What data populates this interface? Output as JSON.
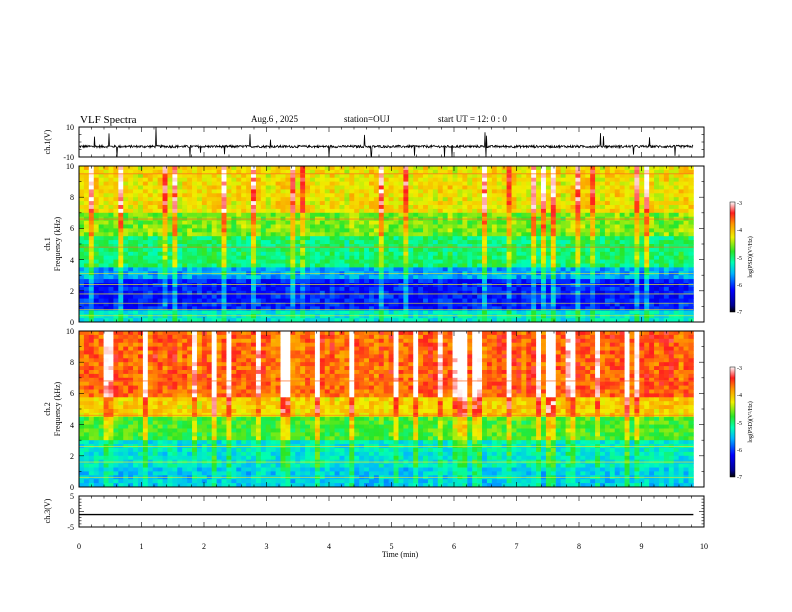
{
  "header": {
    "title": "VLF Spectra",
    "date": "Aug.6 , 2025",
    "station": "station=OUJ",
    "start": "start UT = 12: 0 : 0"
  },
  "chart_data": [
    {
      "type": "line",
      "panel": "ch1-waveform",
      "ylabel": "ch.1(V)",
      "ylim": [
        -10,
        10
      ],
      "ytick_labels": [
        "10",
        "-10"
      ],
      "baseline": -3
    },
    {
      "type": "heatmap",
      "panel": "ch1-spectrogram",
      "ylabel_line1": "ch.1",
      "ylabel_line2": "Frequency (kHz)",
      "ylim": [
        0,
        10
      ],
      "ytick_labels": [
        "0",
        "2",
        "4",
        "6",
        "8",
        "10"
      ],
      "colorbar": {
        "label": "log(PSD)(V²/Hz)",
        "range": [
          -7,
          -3
        ],
        "tick_labels": [
          "-3",
          "-4",
          "-5",
          "-6",
          "-7"
        ]
      }
    },
    {
      "type": "heatmap",
      "panel": "ch2-spectrogram",
      "ylabel_line1": "ch.2",
      "ylabel_line2": "Frequency (kHz)",
      "ylim": [
        0,
        10
      ],
      "ytick_labels": [
        "0",
        "2",
        "4",
        "6",
        "8",
        "10"
      ],
      "colorbar": {
        "label": "log(PSD)(V²/Hz)",
        "range": [
          -7,
          -3
        ],
        "tick_labels": [
          "-3",
          "-4",
          "-5",
          "-6",
          "-7"
        ]
      }
    },
    {
      "type": "line",
      "panel": "ch3-waveform",
      "ylabel": "ch.3(V)",
      "ylim": [
        -5,
        5
      ],
      "ytick_labels": [
        "5",
        "0",
        "-5"
      ],
      "baseline": -1
    }
  ],
  "xaxis": {
    "label": "Time (min)",
    "range": [
      0,
      10
    ],
    "tick_labels": [
      "0",
      "1",
      "2",
      "3",
      "4",
      "5",
      "6",
      "7",
      "8",
      "9",
      "10"
    ],
    "data_end": 9.83
  }
}
